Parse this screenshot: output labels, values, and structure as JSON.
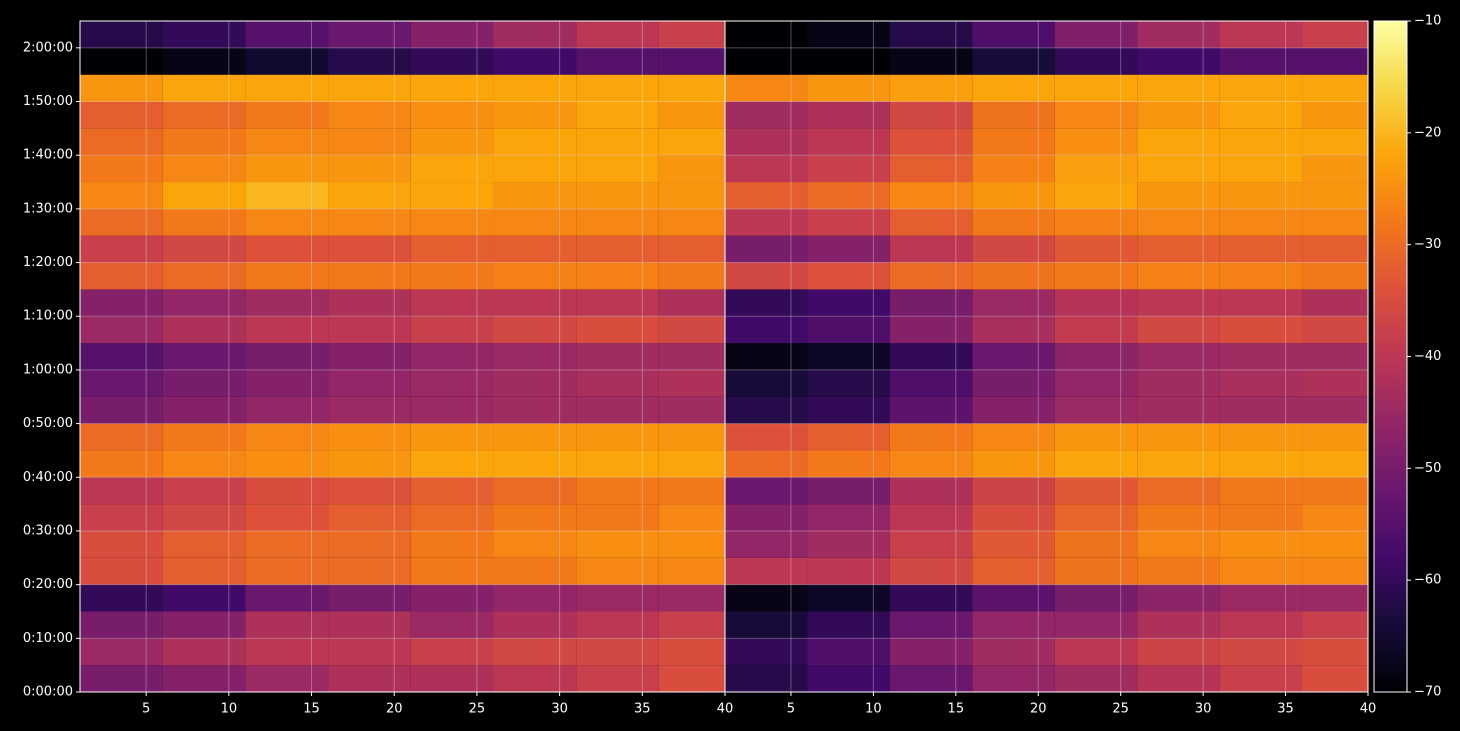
{
  "chart_data": {
    "type": "heatmap",
    "colormap": "inferno",
    "grid": true,
    "ylim": [
      0,
      7500
    ],
    "yticks": [
      {
        "value": 0,
        "label": "0:00:00"
      },
      {
        "value": 600,
        "label": "0:10:00"
      },
      {
        "value": 1200,
        "label": "0:20:00"
      },
      {
        "value": 1800,
        "label": "0:30:00"
      },
      {
        "value": 2400,
        "label": "0:40:00"
      },
      {
        "value": 3000,
        "label": "0:50:00"
      },
      {
        "value": 3600,
        "label": "1:00:00"
      },
      {
        "value": 4200,
        "label": "1:10:00"
      },
      {
        "value": 4800,
        "label": "1:20:00"
      },
      {
        "value": 5400,
        "label": "1:30:00"
      },
      {
        "value": 6000,
        "label": "1:40:00"
      },
      {
        "value": 6600,
        "label": "1:50:00"
      },
      {
        "value": 7200,
        "label": "2:00:00"
      }
    ],
    "xbins": [
      1,
      6,
      11,
      16,
      21,
      26,
      31,
      36,
      40
    ],
    "ybins": [
      0,
      300,
      600,
      900,
      1200,
      1500,
      1800,
      2100,
      2400,
      2700,
      3000,
      3300,
      3600,
      3900,
      4200,
      4500,
      4800,
      5100,
      5400,
      5700,
      6000,
      6300,
      6600,
      6900,
      7200,
      7500
    ],
    "colorbar": {
      "lim": [
        -70,
        -10
      ],
      "ticks": [
        {
          "value": -70,
          "label": "−70"
        },
        {
          "value": -60,
          "label": "−60"
        },
        {
          "value": -50,
          "label": "−50"
        },
        {
          "value": -40,
          "label": "−40"
        },
        {
          "value": -30,
          "label": "−30"
        },
        {
          "value": -20,
          "label": "−20"
        },
        {
          "value": -10,
          "label": "−10"
        }
      ]
    },
    "panels": [
      {
        "xlim": [
          1,
          40
        ],
        "xticks": [
          5,
          10,
          15,
          20,
          25,
          30,
          35,
          40
        ],
        "values": [
          [
            -50,
            -48,
            -45,
            -42,
            -42,
            -40,
            -38,
            -35
          ],
          [
            -45,
            -42,
            -40,
            -40,
            -38,
            -36,
            -36,
            -35
          ],
          [
            -50,
            -48,
            -42,
            -42,
            -45,
            -42,
            -40,
            -38
          ],
          [
            -60,
            -58,
            -52,
            -50,
            -48,
            -46,
            -45,
            -45
          ],
          [
            -35,
            -32,
            -30,
            -30,
            -28,
            -28,
            -26,
            -26
          ],
          [
            -35,
            -32,
            -30,
            -30,
            -28,
            -26,
            -25,
            -25
          ],
          [
            -38,
            -36,
            -34,
            -32,
            -30,
            -28,
            -28,
            -26
          ],
          [
            -40,
            -38,
            -35,
            -34,
            -32,
            -30,
            -28,
            -28
          ],
          [
            -28,
            -26,
            -25,
            -24,
            -22,
            -22,
            -22,
            -22
          ],
          [
            -30,
            -28,
            -26,
            -25,
            -24,
            -24,
            -24,
            -24
          ],
          [
            -50,
            -48,
            -46,
            -45,
            -45,
            -44,
            -44,
            -44
          ],
          [
            -52,
            -50,
            -48,
            -46,
            -45,
            -44,
            -43,
            -42
          ],
          [
            -55,
            -52,
            -50,
            -48,
            -46,
            -45,
            -44,
            -44
          ],
          [
            -45,
            -42,
            -40,
            -40,
            -38,
            -36,
            -35,
            -36
          ],
          [
            -48,
            -46,
            -44,
            -42,
            -40,
            -40,
            -40,
            -42
          ],
          [
            -32,
            -30,
            -28,
            -28,
            -28,
            -27,
            -27,
            -28
          ],
          [
            -38,
            -36,
            -34,
            -34,
            -32,
            -32,
            -32,
            -32
          ],
          [
            -30,
            -28,
            -26,
            -26,
            -26,
            -26,
            -26,
            -26
          ],
          [
            -26,
            -22,
            -20,
            -22,
            -22,
            -24,
            -24,
            -24
          ],
          [
            -28,
            -26,
            -24,
            -24,
            -22,
            -22,
            -22,
            -24
          ],
          [
            -30,
            -28,
            -26,
            -26,
            -24,
            -22,
            -22,
            -22
          ],
          [
            -32,
            -30,
            -28,
            -26,
            -25,
            -24,
            -22,
            -24
          ],
          [
            -24,
            -22,
            -22,
            -22,
            -22,
            -22,
            -22,
            -22
          ],
          [
            -70,
            -68,
            -65,
            -62,
            -60,
            -58,
            -55,
            -55
          ],
          [
            -62,
            -60,
            -55,
            -52,
            -48,
            -44,
            -40,
            -38
          ]
        ]
      },
      {
        "xlim": [
          1,
          40
        ],
        "xticks": [
          5,
          10,
          15,
          20,
          25,
          30,
          35,
          40
        ],
        "values": [
          [
            -62,
            -58,
            -52,
            -46,
            -44,
            -41,
            -38,
            -35
          ],
          [
            -60,
            -56,
            -48,
            -44,
            -40,
            -37,
            -36,
            -35
          ],
          [
            -64,
            -60,
            -52,
            -46,
            -46,
            -42,
            -40,
            -38
          ],
          [
            -68,
            -66,
            -60,
            -54,
            -50,
            -47,
            -45,
            -45
          ],
          [
            -40,
            -40,
            -36,
            -32,
            -29,
            -28,
            -26,
            -26
          ],
          [
            -46,
            -44,
            -38,
            -33,
            -29,
            -26,
            -25,
            -25
          ],
          [
            -48,
            -46,
            -40,
            -35,
            -31,
            -28,
            -28,
            -26
          ],
          [
            -52,
            -50,
            -42,
            -37,
            -33,
            -30,
            -28,
            -28
          ],
          [
            -30,
            -28,
            -26,
            -24,
            -22,
            -22,
            -22,
            -22
          ],
          [
            -34,
            -32,
            -28,
            -26,
            -24,
            -24,
            -24,
            -24
          ],
          [
            -62,
            -60,
            -54,
            -48,
            -45,
            -44,
            -44,
            -44
          ],
          [
            -64,
            -62,
            -56,
            -50,
            -46,
            -44,
            -43,
            -42
          ],
          [
            -68,
            -66,
            -60,
            -52,
            -47,
            -45,
            -44,
            -44
          ],
          [
            -58,
            -56,
            -48,
            -43,
            -39,
            -36,
            -35,
            -36
          ],
          [
            -60,
            -58,
            -50,
            -45,
            -41,
            -40,
            -40,
            -42
          ],
          [
            -36,
            -34,
            -30,
            -29,
            -28,
            -27,
            -27,
            -28
          ],
          [
            -50,
            -48,
            -40,
            -36,
            -33,
            -32,
            -32,
            -32
          ],
          [
            -40,
            -38,
            -32,
            -28,
            -27,
            -26,
            -26,
            -26
          ],
          [
            -32,
            -30,
            -26,
            -24,
            -22,
            -24,
            -24,
            -24
          ],
          [
            -40,
            -38,
            -32,
            -27,
            -23,
            -22,
            -22,
            -24
          ],
          [
            -42,
            -40,
            -34,
            -28,
            -25,
            -22,
            -22,
            -22
          ],
          [
            -44,
            -42,
            -36,
            -29,
            -26,
            -24,
            -22,
            -24
          ],
          [
            -26,
            -24,
            -23,
            -22,
            -22,
            -22,
            -22,
            -22
          ],
          [
            -70,
            -70,
            -68,
            -64,
            -60,
            -58,
            -55,
            -55
          ],
          [
            -70,
            -68,
            -62,
            -56,
            -49,
            -44,
            -40,
            -38
          ]
        ]
      }
    ]
  }
}
